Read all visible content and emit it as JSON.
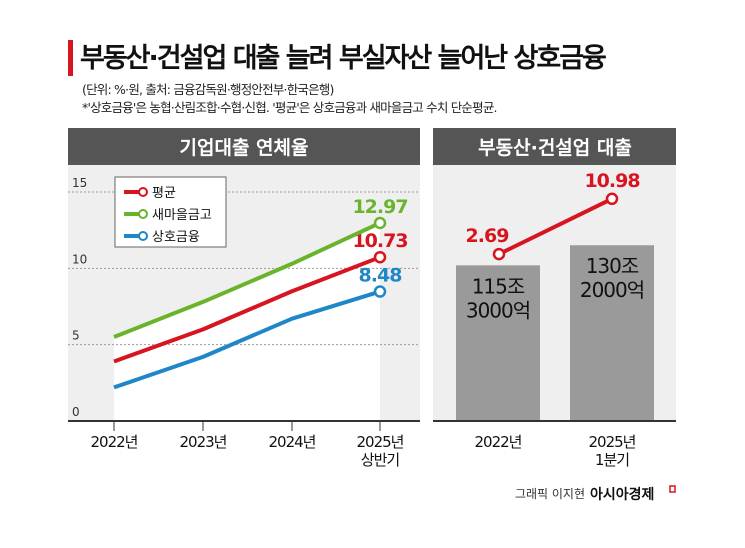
{
  "title": "부동산·건설업 대출 늘려 부실자산 늘어난 상호금융",
  "unit_note": "(단위: %·원, 출처: 금융감독원·행정안전부·한국은행)",
  "footnote": "*'상호금융'은 농협·산림조합·수협·신협. '평균'은 상호금융과 새마을금고 수치 단순평균.",
  "credit": "그래픽 이지현",
  "publisher": "아시아경제",
  "colors": {
    "red": "#d7141f",
    "green": "#6ab42d",
    "blue": "#1f87c8",
    "header": "#555555",
    "bar": "#9a9a9a"
  },
  "chart_data": [
    {
      "type": "line",
      "title": "기업대출 연체율",
      "categories": [
        "2022년",
        "2023년",
        "2024년",
        "2025년 상반기"
      ],
      "category_lines": [
        [
          "2022년"
        ],
        [
          "2023년"
        ],
        [
          "2024년"
        ],
        [
          "2025년",
          "상반기"
        ]
      ],
      "ylim": [
        0,
        15
      ],
      "yticks": [
        0,
        5,
        10,
        15
      ],
      "grid": true,
      "legend_placement": "top-left",
      "series": [
        {
          "name": "평균",
          "color": "#d7141f",
          "values": [
            3.9,
            6.0,
            8.5,
            10.73
          ],
          "end_label": "10.73"
        },
        {
          "name": "새마을금고",
          "color": "#6ab42d",
          "values": [
            5.5,
            7.8,
            10.3,
            12.97
          ],
          "end_label": "12.97"
        },
        {
          "name": "상호금융",
          "color": "#1f87c8",
          "values": [
            2.2,
            4.2,
            6.7,
            8.48
          ],
          "end_label": "8.48"
        }
      ]
    },
    {
      "type": "bar",
      "title": "부동산·건설업 대출",
      "categories": [
        "2022년",
        "2025년 1분기"
      ],
      "category_lines": [
        [
          "2022년"
        ],
        [
          "2025년",
          "1분기"
        ]
      ],
      "bar_values_won": [
        115.3,
        130.2
      ],
      "bar_value_unit": "조원",
      "bar_labels": [
        [
          "115조",
          "3000억"
        ],
        [
          "130조",
          "2000억"
        ]
      ],
      "line_values": [
        2.69,
        10.98
      ],
      "line_labels": [
        "2.69",
        "10.98"
      ],
      "line_color": "#d7141f"
    }
  ]
}
